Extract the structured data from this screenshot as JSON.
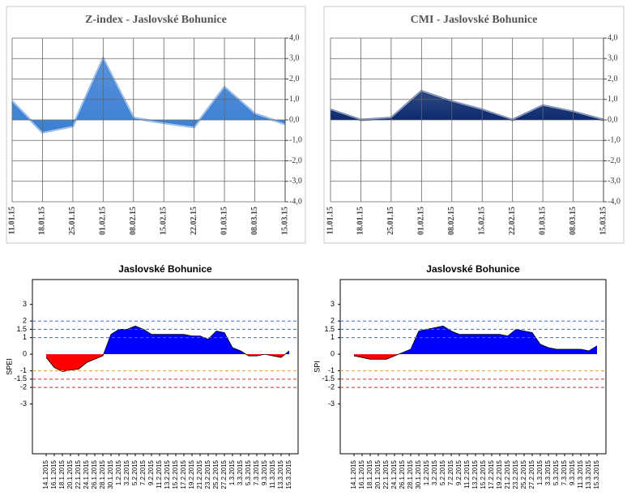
{
  "chart_data": [
    {
      "type": "area",
      "title": "Z-index - Jaslovské Bohunice",
      "categories": [
        "11.01.15",
        "18.01.15",
        "25.01.15",
        "01.02.15",
        "08.02.15",
        "15.02.15",
        "22.02.15",
        "01.03.15",
        "08.03.15",
        "15.03.15"
      ],
      "values": [
        0.9,
        -0.6,
        -0.3,
        3.0,
        0.1,
        -0.15,
        -0.35,
        1.6,
        0.3,
        -0.2
      ],
      "color": "#3b7fd4",
      "ylim": [
        -4,
        4
      ],
      "yticks": [
        {
          "value": 4,
          "label": "4,0"
        },
        {
          "value": 3,
          "label": "3,0"
        },
        {
          "value": 2,
          "label": "2,0"
        },
        {
          "value": 1,
          "label": "1,0"
        },
        {
          "value": 0,
          "label": "0,0"
        },
        {
          "value": -1,
          "label": "-1,0"
        },
        {
          "value": -2,
          "label": "-2,0"
        },
        {
          "value": -3,
          "label": "-3,0"
        },
        {
          "value": -4,
          "label": "-4,0"
        }
      ],
      "grid": true
    },
    {
      "type": "area",
      "title": "CMI - Jaslovské Bohunice",
      "categories": [
        "11.01.15",
        "18.01.15",
        "25.01.15",
        "01.02.15",
        "08.02.15",
        "15.02.15",
        "22.02.15",
        "01.03.15",
        "08.03.15",
        "15.03.15"
      ],
      "values": [
        0.5,
        0.0,
        0.1,
        1.4,
        0.9,
        0.5,
        0.0,
        0.7,
        0.4,
        0.0
      ],
      "color": "#0b2a6e",
      "ylim": [
        -4,
        4
      ],
      "yticks": [
        {
          "value": 4,
          "label": "4,0"
        },
        {
          "value": 3,
          "label": "3,0"
        },
        {
          "value": 2,
          "label": "2,0"
        },
        {
          "value": 1,
          "label": "1,0"
        },
        {
          "value": 0,
          "label": "0,0"
        },
        {
          "value": -1,
          "label": "-1,0"
        },
        {
          "value": -2,
          "label": "-2,0"
        },
        {
          "value": -3,
          "label": "-3,0"
        },
        {
          "value": -4,
          "label": "-4,0"
        }
      ],
      "grid": true
    },
    {
      "type": "signed-area",
      "title": "Jaslovské Bohunice",
      "y_label": "SPEI",
      "categories": [
        "14.1.2015",
        "16.1.2015",
        "18.1.2015",
        "20.1.2015",
        "22.1.2015",
        "24.1.2015",
        "26.1.2015",
        "28.1.2015",
        "30.1.2015",
        "1.2.2015",
        "3.2.2015",
        "5.2.2015",
        "7.2.2015",
        "9.2.2015",
        "11.2.2015",
        "13.2.2015",
        "15.2.2015",
        "17.2.2015",
        "19.2.2015",
        "21.2.2015",
        "23.2.2015",
        "25.2.2015",
        "27.2.2015",
        "1.3.2015",
        "3.3.2015",
        "5.3.2015",
        "7.3.2015",
        "9.3.2015",
        "11.3.2015",
        "13.3.2015",
        "15.3.2015"
      ],
      "values": [
        -0.2,
        -0.8,
        -1.05,
        -0.95,
        -0.9,
        -0.5,
        -0.3,
        -0.1,
        1.2,
        1.5,
        1.5,
        1.7,
        1.5,
        1.2,
        1.2,
        1.2,
        1.2,
        1.2,
        1.1,
        1.1,
        0.9,
        1.4,
        1.3,
        0.4,
        0.2,
        -0.1,
        -0.1,
        0.0,
        -0.1,
        -0.2,
        0.2
      ],
      "positive_color": "#0000ff",
      "negative_color": "#ff0000",
      "ylim": [
        -6,
        4.5
      ],
      "yticks": [
        3,
        2,
        1.5,
        1,
        0,
        -1,
        -1.5,
        -2,
        -3
      ],
      "reference_lines": [
        {
          "value": 2,
          "color": "#3a6fd8"
        },
        {
          "value": 1.5,
          "color": "#3a6fd8"
        },
        {
          "value": 1,
          "color": "#3a6fd8"
        },
        {
          "value": -1,
          "color": "#f0a020"
        },
        {
          "value": -1.5,
          "color": "#d03030"
        },
        {
          "value": -2,
          "color": "#d03030"
        }
      ]
    },
    {
      "type": "signed-area",
      "title": "Jaslovské Bohunice",
      "y_label": "SPI",
      "categories": [
        "14.1.2015",
        "16.1.2015",
        "18.1.2015",
        "20.1.2015",
        "22.1.2015",
        "24.1.2015",
        "26.1.2015",
        "28.1.2015",
        "30.1.2015",
        "1.2.2015",
        "3.2.2015",
        "5.2.2015",
        "7.2.2015",
        "9.2.2015",
        "11.2.2015",
        "13.2.2015",
        "15.2.2015",
        "17.2.2015",
        "19.2.2015",
        "21.2.2015",
        "23.2.2015",
        "25.2.2015",
        "27.2.2015",
        "1.3.2015",
        "3.3.2015",
        "5.3.2015",
        "7.3.2015",
        "9.3.2015",
        "11.3.2015",
        "13.3.2015",
        "15.3.2015"
      ],
      "values": [
        -0.1,
        -0.2,
        -0.3,
        -0.3,
        -0.3,
        -0.1,
        0.1,
        0.3,
        1.4,
        1.5,
        1.6,
        1.7,
        1.4,
        1.2,
        1.2,
        1.2,
        1.2,
        1.2,
        1.2,
        1.1,
        1.5,
        1.4,
        1.3,
        0.6,
        0.4,
        0.3,
        0.3,
        0.3,
        0.3,
        0.2,
        0.5
      ],
      "positive_color": "#0000ff",
      "negative_color": "#ff0000",
      "ylim": [
        -6,
        4.5
      ],
      "yticks": [
        3,
        2,
        1.5,
        1,
        0,
        -1,
        -1.5,
        -2,
        -3
      ],
      "reference_lines": [
        {
          "value": 2,
          "color": "#3a6fd8"
        },
        {
          "value": 1.5,
          "color": "#3a6fd8"
        },
        {
          "value": 1,
          "color": "#3a6fd8"
        },
        {
          "value": -1,
          "color": "#f0a020"
        },
        {
          "value": -1.5,
          "color": "#d03030"
        },
        {
          "value": -2,
          "color": "#d03030"
        }
      ]
    }
  ]
}
